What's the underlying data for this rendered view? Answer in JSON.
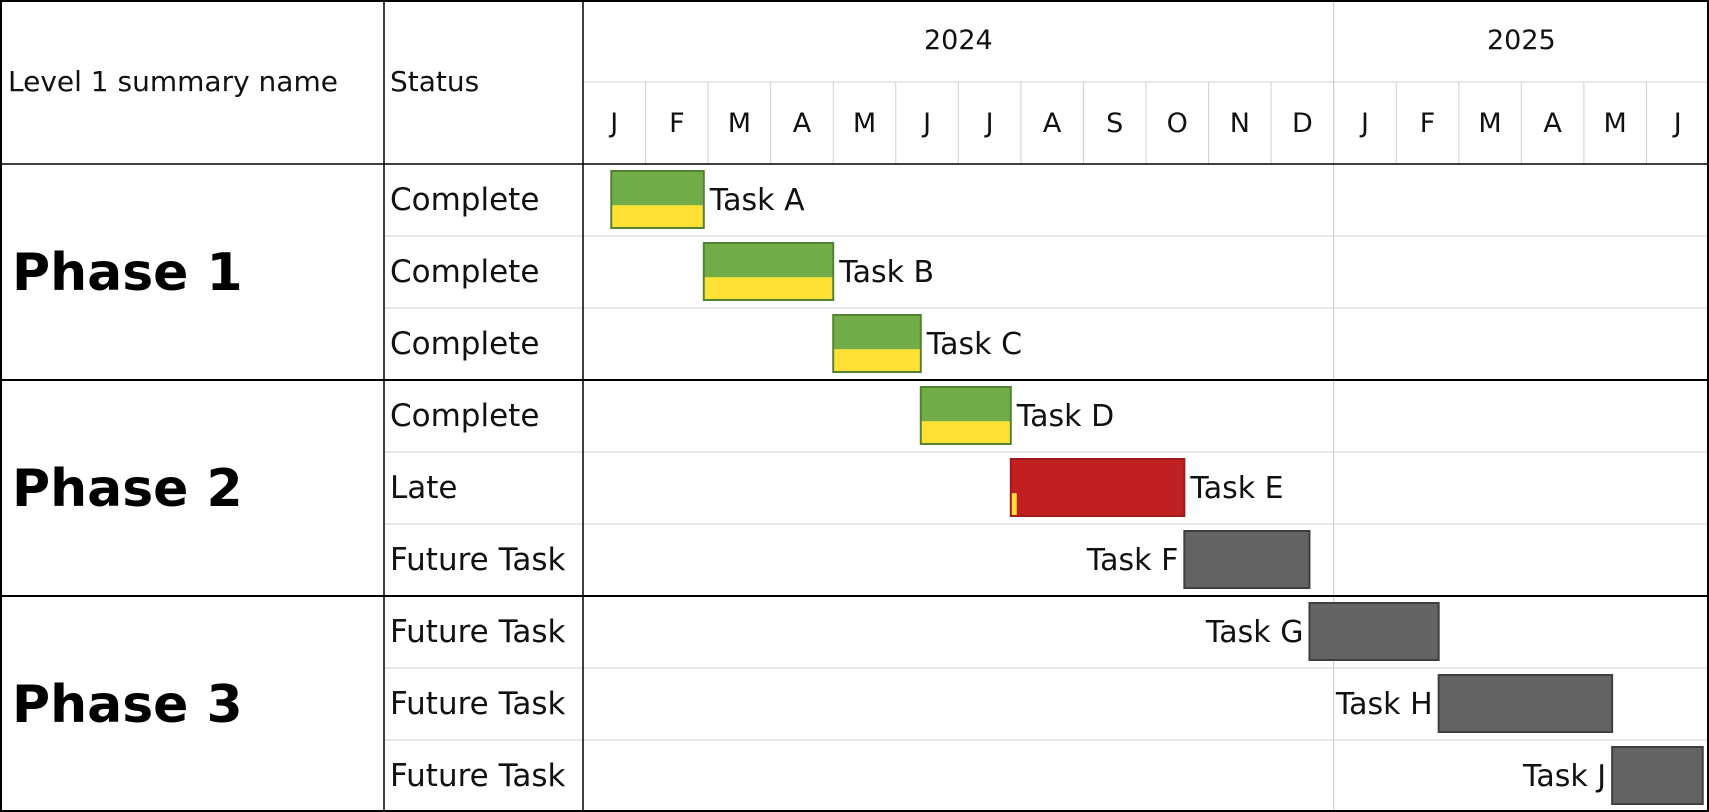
{
  "header": {
    "name_col": "Level 1 summary name",
    "status_col": "Status"
  },
  "timeline": {
    "years": [
      {
        "label": "2024",
        "first_month": 0,
        "month_count": 12
      },
      {
        "label": "2025",
        "first_month": 12,
        "month_count": 6
      }
    ],
    "months": [
      "J",
      "F",
      "M",
      "A",
      "M",
      "J",
      "J",
      "A",
      "S",
      "O",
      "N",
      "D",
      "J",
      "F",
      "M",
      "A",
      "M",
      "J"
    ]
  },
  "colors": {
    "complete": "#70ad47",
    "complete_border": "#548235",
    "progress": "#ffe034",
    "late": "#c0201f",
    "late_border": "#9e1b1b",
    "future": "#636363",
    "future_border": "#3f3f3f",
    "grid": "#d0d0d0",
    "rule": "#000000"
  },
  "chart_data": {
    "type": "gantt",
    "x_unit": "month",
    "xlim": [
      "2024-01",
      "2025-06"
    ],
    "phases": [
      {
        "name": "Phase 1",
        "tasks": [
          {
            "name": "Task A",
            "status": "Complete",
            "start": "2024-01-15",
            "end": "2024-02-28",
            "percent_complete": 100
          },
          {
            "name": "Task B",
            "status": "Complete",
            "start": "2024-02-28",
            "end": "2024-05-01",
            "percent_complete": 100
          },
          {
            "name": "Task C",
            "status": "Complete",
            "start": "2024-05-01",
            "end": "2024-06-13",
            "percent_complete": 100
          }
        ]
      },
      {
        "name": "Phase 2",
        "tasks": [
          {
            "name": "Task D",
            "status": "Complete",
            "start": "2024-06-13",
            "end": "2024-07-27",
            "percent_complete": 100
          },
          {
            "name": "Task E",
            "status": "Late",
            "start": "2024-07-27",
            "end": "2024-10-20",
            "percent_complete": 4
          },
          {
            "name": "Task F",
            "status": "Future Task",
            "start": "2024-10-20",
            "end": "2024-12-20",
            "percent_complete": 0
          }
        ]
      },
      {
        "name": "Phase 3",
        "tasks": [
          {
            "name": "Task G",
            "status": "Future Task",
            "start": "2024-12-20",
            "end": "2025-02-20",
            "percent_complete": 0
          },
          {
            "name": "Task H",
            "status": "Future Task",
            "start": "2025-02-20",
            "end": "2025-05-15",
            "percent_complete": 0
          },
          {
            "name": "Task J",
            "status": "Future Task",
            "start": "2025-05-15",
            "end": "2025-06-28",
            "percent_complete": 0
          }
        ]
      }
    ]
  }
}
